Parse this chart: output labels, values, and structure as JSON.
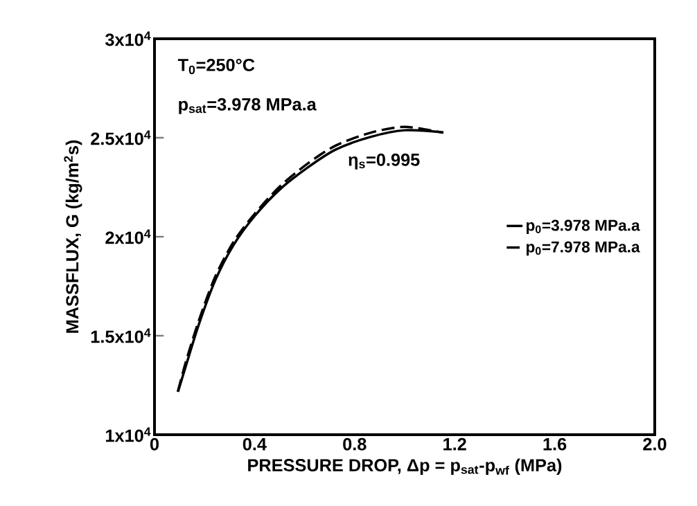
{
  "chart_data": {
    "type": "line",
    "xlabel": "PRESSURE DROP, Δp = p$_{sat}$-p$_{wf}$ (MPa)",
    "ylabel": "MASSFLUX, G (kg/m$^{2}$s)",
    "annotations": [
      "T$_{0}$=250°C",
      "p$_{sat}$=3.978 MPa.a",
      "η$_{s}$=0.995"
    ],
    "xlim": [
      0,
      2.0
    ],
    "ylim": [
      10000,
      30000
    ],
    "xticks": [
      0,
      0.4,
      0.8,
      1.2,
      1.6,
      {
        "value": 2.0,
        "label": "2.0"
      }
    ],
    "yticks": [
      {
        "value": 10000,
        "label": "1x10$^{4}$"
      },
      {
        "value": 15000,
        "label": "1.5x10$^{4}$"
      },
      {
        "value": 20000,
        "label": "2x10$^{4}$"
      },
      {
        "value": 25000,
        "label": "2.5x10$^{4}$"
      },
      {
        "value": 30000,
        "label": "3x10$^{4}$"
      }
    ],
    "legend": "right",
    "grid": false,
    "series": [
      {
        "name": "p$_{0}$=3.978 MPa.a",
        "color": "#000000",
        "line_style": "solid",
        "x": [
          0.094,
          0.131,
          0.178,
          0.243,
          0.317,
          0.4,
          0.502,
          0.613,
          0.724,
          0.863,
          1.002,
          1.155
        ],
        "values": [
          12170,
          13710,
          15600,
          17800,
          19600,
          21040,
          22400,
          23500,
          24400,
          25040,
          25380,
          25270
        ]
      },
      {
        "name": "p$_{0}$=7.978 MPa.a",
        "color": "#000000",
        "line_style": "dashed",
        "x": [
          0.093,
          0.127,
          0.175,
          0.24,
          0.315,
          0.4,
          0.502,
          0.613,
          0.724,
          0.863,
          1.002,
          1.155
        ],
        "values": [
          12170,
          13750,
          15680,
          17900,
          19720,
          21150,
          22550,
          23700,
          24600,
          25250,
          25550,
          25250
        ]
      }
    ]
  }
}
